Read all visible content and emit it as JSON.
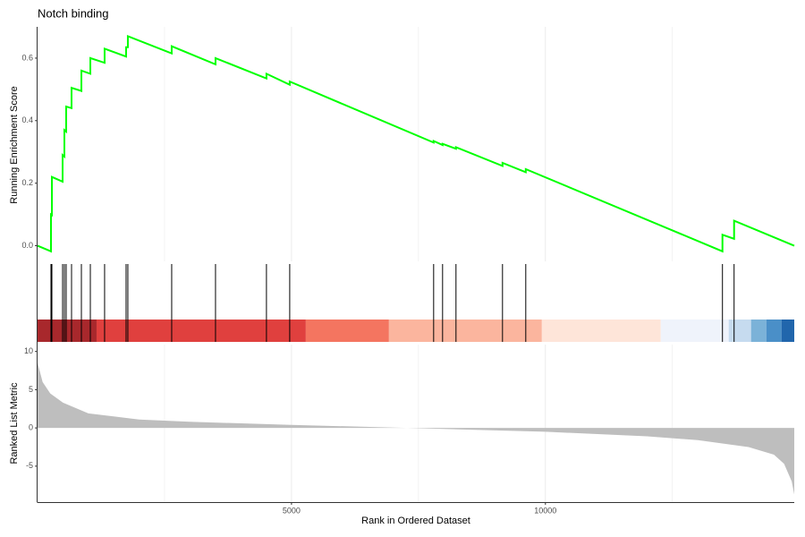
{
  "chart_data": [
    {
      "type": "line",
      "title": "Notch binding",
      "y_label": "Running Enrichment Score",
      "x": [
        0,
        264,
        264,
        282,
        282,
        493,
        493,
        528,
        528,
        563,
        563,
        669,
        669,
        863,
        863,
        1039,
        1039,
        1320,
        1320,
        1743,
        1743,
        1778,
        1778,
        2641,
        2641,
        3504,
        3504,
        4507,
        4507,
        4965,
        4965,
        7799,
        7799,
        7975,
        7975,
        8239,
        8239,
        9155,
        9155,
        9613,
        9613,
        13486,
        13486,
        13715,
        13715,
        14900
      ],
      "values": [
        0,
        -0.018,
        0.1,
        0.098,
        0.22,
        0.205,
        0.29,
        0.285,
        0.37,
        0.365,
        0.445,
        0.44,
        0.505,
        0.495,
        0.56,
        0.55,
        0.6,
        0.585,
        0.63,
        0.605,
        0.635,
        0.635,
        0.67,
        0.615,
        0.638,
        0.58,
        0.6,
        0.535,
        0.55,
        0.515,
        0.525,
        0.33,
        0.335,
        0.322,
        0.326,
        0.31,
        0.315,
        0.255,
        0.265,
        0.235,
        0.245,
        -0.018,
        0.035,
        0.022,
        0.08,
        0
      ],
      "color": "#00ff00",
      "xlim": [
        0,
        14900
      ],
      "ylim": [
        -0.05,
        0.7
      ],
      "yticks": [
        {
          "value": 0,
          "label": "0.0"
        },
        0.2,
        0.4,
        0.6
      ],
      "grid_x": [
        2500,
        5000,
        7500,
        10000,
        12500
      ]
    },
    {
      "type": "rug",
      "x": [
        264,
        282,
        493,
        528,
        563,
        669,
        863,
        1039,
        1320,
        1743,
        1778,
        2641,
        3504,
        4507,
        4965,
        7799,
        7975,
        8239,
        9155,
        9613,
        13486,
        13715
      ],
      "color": "#000000",
      "xlim": [
        0,
        14900
      ],
      "bands": [
        {
          "from": 0,
          "to": 1162,
          "color": "#a8282c"
        },
        {
          "from": 1162,
          "to": 5282,
          "color": "#e0403e"
        },
        {
          "from": 5282,
          "to": 6919,
          "color": "#f47560"
        },
        {
          "from": 6919,
          "to": 9930,
          "color": "#fbb59e"
        },
        {
          "from": 9930,
          "to": 12271,
          "color": "#fee5d9"
        },
        {
          "from": 12271,
          "to": 13609,
          "color": "#eff3fb"
        },
        {
          "from": 13609,
          "to": 14049,
          "color": "#c6dbef"
        },
        {
          "from": 14049,
          "to": 14349,
          "color": "#7bb2d8"
        },
        {
          "from": 14349,
          "to": 14648,
          "color": "#4a8fc8"
        },
        {
          "from": 14648,
          "to": 14900,
          "color": "#2166ac"
        }
      ]
    },
    {
      "type": "area",
      "x_label": "Rank in Ordered Dataset",
      "y_label": "Ranked List Metric",
      "x": [
        0,
        100,
        250,
        500,
        1000,
        2000,
        3000,
        5000,
        7270,
        10000,
        12000,
        13000,
        14000,
        14500,
        14700,
        14850,
        14900
      ],
      "values": [
        8.5,
        6,
        4.5,
        3.3,
        1.9,
        1.1,
        0.8,
        0.4,
        0,
        -0.5,
        -1.1,
        -1.6,
        -2.5,
        -3.5,
        -4.7,
        -7,
        -8.7
      ],
      "color": "#bebebe",
      "xlim": [
        0,
        14900
      ],
      "ylim": [
        -9.7,
        10.9
      ],
      "xticks": [
        5000,
        10000
      ],
      "yticks": [
        10,
        5,
        0,
        -5
      ],
      "grid_x": [
        2500,
        5000,
        7500,
        10000,
        12500
      ]
    }
  ]
}
